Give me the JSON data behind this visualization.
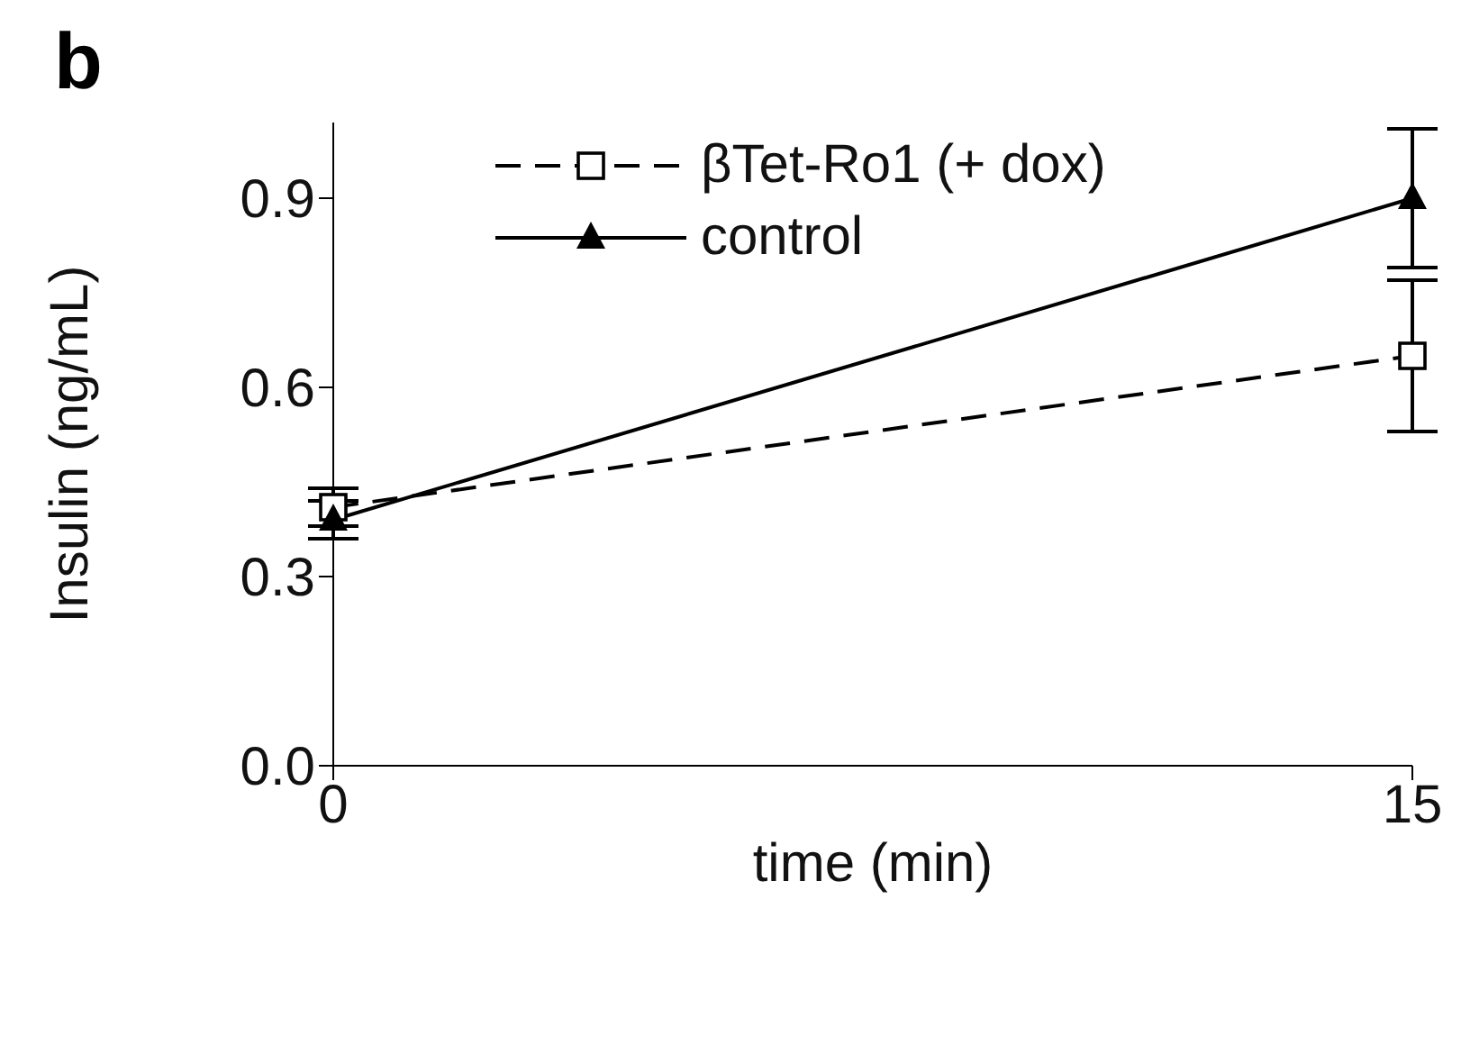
{
  "chart_data": {
    "type": "line",
    "title": "b",
    "xlabel": "time (min)",
    "ylabel": "Insulin (ng/mL)",
    "x": [
      0,
      15
    ],
    "series": [
      {
        "name": "βTet-Ro1 (+ dox)",
        "color": "#000000",
        "values": [
          0.41,
          0.65
        ],
        "errors": [
          0.03,
          0.12
        ],
        "marker": "square",
        "line_style": "dashed"
      },
      {
        "name": "control",
        "color": "#000000",
        "values": [
          0.39,
          0.9
        ],
        "errors": [
          0.03,
          0.11
        ],
        "marker": "triangle",
        "line_style": "solid"
      }
    ],
    "xlim": [
      0,
      15
    ],
    "xticks": [
      0,
      15
    ],
    "ylim": [
      0,
      1.02
    ],
    "yticks": [
      {
        "value": 0,
        "label": "0.0"
      },
      {
        "value": 0.3,
        "label": "0.3"
      },
      {
        "value": 0.6,
        "label": "0.6"
      },
      {
        "value": 0.9,
        "label": "0.9"
      }
    ],
    "grid": false,
    "legend": "top left"
  }
}
